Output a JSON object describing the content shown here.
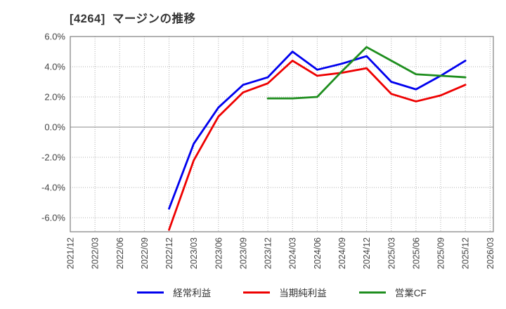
{
  "title": "[4264]  マージンの推移",
  "chart_data": {
    "type": "line",
    "title": "[4264]  マージンの推移",
    "categories": [
      "2021/12",
      "2022/03",
      "2022/06",
      "2022/09",
      "2022/12",
      "2023/03",
      "2023/06",
      "2023/09",
      "2023/12",
      "2024/03",
      "2024/06",
      "2024/09",
      "2024/12",
      "2025/03",
      "2025/06",
      "2025/09",
      "2025/12",
      "2026/03"
    ],
    "series": [
      {
        "name": "経常利益",
        "color": "#0000ee",
        "values": [
          null,
          null,
          null,
          null,
          -5.4,
          -1.1,
          1.3,
          2.8,
          3.3,
          5.0,
          3.8,
          4.2,
          4.7,
          3.0,
          2.5,
          3.4,
          4.4,
          null
        ]
      },
      {
        "name": "当期純利益",
        "color": "#ee0000",
        "values": [
          null,
          null,
          null,
          null,
          -6.8,
          -2.2,
          0.7,
          2.3,
          2.9,
          4.4,
          3.4,
          3.6,
          3.9,
          2.2,
          1.7,
          2.1,
          2.8,
          null
        ]
      },
      {
        "name": "営業CF",
        "color": "#1e8e1e",
        "values": [
          null,
          null,
          null,
          null,
          null,
          null,
          null,
          null,
          1.9,
          1.9,
          2.0,
          3.7,
          5.3,
          4.4,
          3.5,
          3.4,
          3.3,
          null
        ]
      }
    ],
    "yticks": [
      6.0,
      4.0,
      2.0,
      0.0,
      -2.0,
      -4.0,
      -6.0
    ],
    "ytick_labels": [
      "6.0%",
      "4.0%",
      "2.0%",
      "0.0%",
      "-2.0%",
      "-4.0%",
      "-6.0%"
    ],
    "ylim": [
      -6.93,
      6.0
    ],
    "xlabel": "",
    "ylabel": "",
    "grid": true,
    "legend_position": "bottom"
  },
  "colors": {
    "grid": "#b0b0b0",
    "zero_line": "#888888",
    "frame": "#7f7f7f",
    "axis_text": "#444444"
  }
}
